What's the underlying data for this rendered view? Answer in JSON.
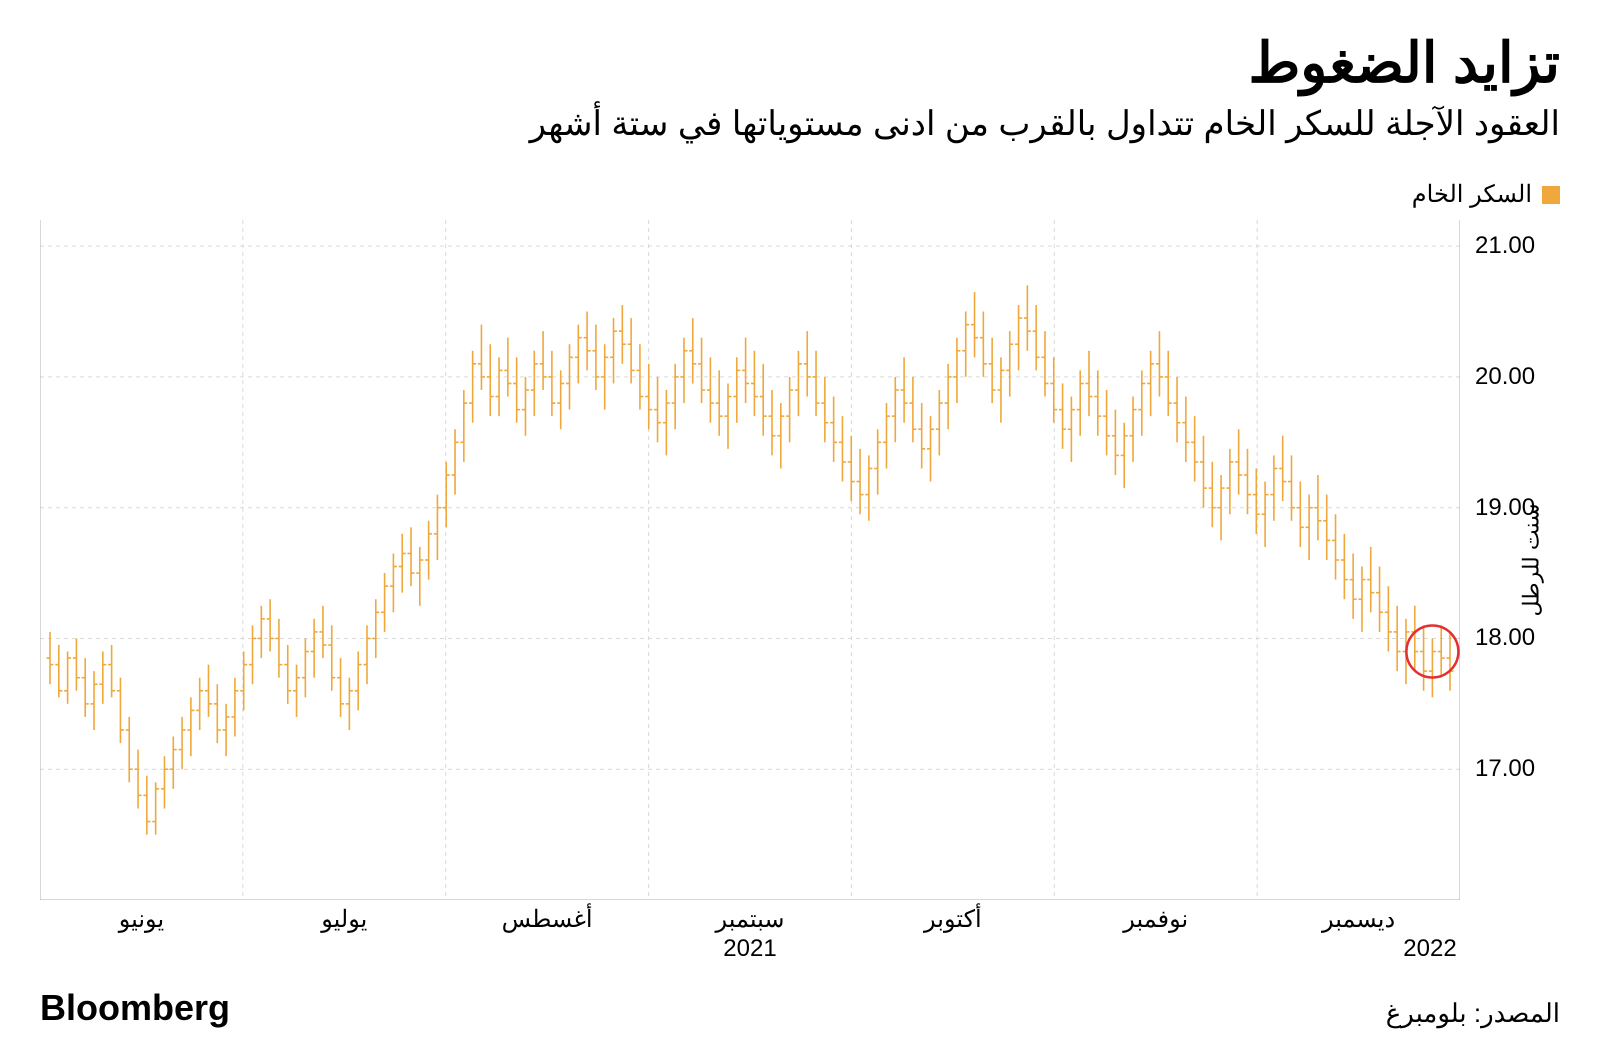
{
  "header": {
    "title": "تزايد الضغوط",
    "subtitle": "العقود الآجلة للسكر الخام تتداول بالقرب من ادنى مستوياتها في ستة أشهر"
  },
  "legend": {
    "swatch_color": "#f0a83c",
    "label": "السكر الخام"
  },
  "chart": {
    "type": "ohlc",
    "series_color": "#f0a83c",
    "background_color": "#ffffff",
    "grid_color": "#d9d9d9",
    "border_color": "#b0b0b0",
    "font_size_axis": 24,
    "y_axis": {
      "label": "سنت للرطل",
      "min": 16.0,
      "max": 21.2,
      "ticks": [
        17.0,
        18.0,
        19.0,
        20.0,
        21.0
      ],
      "tick_labels": [
        "17.00",
        "18.00",
        "19.00",
        "20.00",
        "21.00"
      ]
    },
    "x_axis": {
      "labels": [
        "يونيو",
        "يوليو",
        "أغسطس",
        "سبتمبر",
        "أكتوبر",
        "نوفمبر",
        "ديسمبر"
      ],
      "year_label_main": "2021",
      "year_label_end": "2022",
      "n_points": 160
    },
    "highlight_circle": {
      "color": "#e03030",
      "stroke_width": 2.5,
      "radius": 26,
      "at_index": 157,
      "at_value": 17.9
    },
    "data": [
      {
        "o": 17.85,
        "h": 18.05,
        "l": 17.65,
        "c": 17.8
      },
      {
        "o": 17.8,
        "h": 17.95,
        "l": 17.55,
        "c": 17.6
      },
      {
        "o": 17.6,
        "h": 17.9,
        "l": 17.5,
        "c": 17.85
      },
      {
        "o": 17.85,
        "h": 18.0,
        "l": 17.6,
        "c": 17.7
      },
      {
        "o": 17.7,
        "h": 17.85,
        "l": 17.4,
        "c": 17.5
      },
      {
        "o": 17.5,
        "h": 17.75,
        "l": 17.3,
        "c": 17.65
      },
      {
        "o": 17.65,
        "h": 17.9,
        "l": 17.5,
        "c": 17.8
      },
      {
        "o": 17.8,
        "h": 17.95,
        "l": 17.55,
        "c": 17.6
      },
      {
        "o": 17.6,
        "h": 17.7,
        "l": 17.2,
        "c": 17.3
      },
      {
        "o": 17.3,
        "h": 17.4,
        "l": 16.9,
        "c": 17.0
      },
      {
        "o": 17.0,
        "h": 17.15,
        "l": 16.7,
        "c": 16.8
      },
      {
        "o": 16.8,
        "h": 16.95,
        "l": 16.5,
        "c": 16.6
      },
      {
        "o": 16.6,
        "h": 16.9,
        "l": 16.5,
        "c": 16.85
      },
      {
        "o": 16.85,
        "h": 17.1,
        "l": 16.7,
        "c": 17.0
      },
      {
        "o": 17.0,
        "h": 17.25,
        "l": 16.85,
        "c": 17.15
      },
      {
        "o": 17.15,
        "h": 17.4,
        "l": 17.0,
        "c": 17.3
      },
      {
        "o": 17.3,
        "h": 17.55,
        "l": 17.1,
        "c": 17.45
      },
      {
        "o": 17.45,
        "h": 17.7,
        "l": 17.3,
        "c": 17.6
      },
      {
        "o": 17.6,
        "h": 17.8,
        "l": 17.4,
        "c": 17.5
      },
      {
        "o": 17.5,
        "h": 17.65,
        "l": 17.2,
        "c": 17.3
      },
      {
        "o": 17.3,
        "h": 17.5,
        "l": 17.1,
        "c": 17.4
      },
      {
        "o": 17.4,
        "h": 17.7,
        "l": 17.25,
        "c": 17.6
      },
      {
        "o": 17.6,
        "h": 17.9,
        "l": 17.45,
        "c": 17.8
      },
      {
        "o": 17.8,
        "h": 18.1,
        "l": 17.65,
        "c": 18.0
      },
      {
        "o": 18.0,
        "h": 18.25,
        "l": 17.85,
        "c": 18.15
      },
      {
        "o": 18.15,
        "h": 18.3,
        "l": 17.9,
        "c": 18.0
      },
      {
        "o": 18.0,
        "h": 18.15,
        "l": 17.7,
        "c": 17.8
      },
      {
        "o": 17.8,
        "h": 17.95,
        "l": 17.5,
        "c": 17.6
      },
      {
        "o": 17.6,
        "h": 17.8,
        "l": 17.4,
        "c": 17.7
      },
      {
        "o": 17.7,
        "h": 18.0,
        "l": 17.55,
        "c": 17.9
      },
      {
        "o": 17.9,
        "h": 18.15,
        "l": 17.7,
        "c": 18.05
      },
      {
        "o": 18.05,
        "h": 18.25,
        "l": 17.85,
        "c": 17.95
      },
      {
        "o": 17.95,
        "h": 18.1,
        "l": 17.6,
        "c": 17.7
      },
      {
        "o": 17.7,
        "h": 17.85,
        "l": 17.4,
        "c": 17.5
      },
      {
        "o": 17.5,
        "h": 17.7,
        "l": 17.3,
        "c": 17.6
      },
      {
        "o": 17.6,
        "h": 17.9,
        "l": 17.45,
        "c": 17.8
      },
      {
        "o": 17.8,
        "h": 18.1,
        "l": 17.65,
        "c": 18.0
      },
      {
        "o": 18.0,
        "h": 18.3,
        "l": 17.85,
        "c": 18.2
      },
      {
        "o": 18.2,
        "h": 18.5,
        "l": 18.05,
        "c": 18.4
      },
      {
        "o": 18.4,
        "h": 18.65,
        "l": 18.2,
        "c": 18.55
      },
      {
        "o": 18.55,
        "h": 18.8,
        "l": 18.35,
        "c": 18.65
      },
      {
        "o": 18.65,
        "h": 18.85,
        "l": 18.4,
        "c": 18.5
      },
      {
        "o": 18.5,
        "h": 18.7,
        "l": 18.25,
        "c": 18.6
      },
      {
        "o": 18.6,
        "h": 18.9,
        "l": 18.45,
        "c": 18.8
      },
      {
        "o": 18.8,
        "h": 19.1,
        "l": 18.6,
        "c": 19.0
      },
      {
        "o": 19.0,
        "h": 19.35,
        "l": 18.85,
        "c": 19.25
      },
      {
        "o": 19.25,
        "h": 19.6,
        "l": 19.1,
        "c": 19.5
      },
      {
        "o": 19.5,
        "h": 19.9,
        "l": 19.35,
        "c": 19.8
      },
      {
        "o": 19.8,
        "h": 20.2,
        "l": 19.65,
        "c": 20.1
      },
      {
        "o": 20.1,
        "h": 20.4,
        "l": 19.9,
        "c": 20.0
      },
      {
        "o": 20.0,
        "h": 20.25,
        "l": 19.7,
        "c": 19.85
      },
      {
        "o": 19.85,
        "h": 20.15,
        "l": 19.7,
        "c": 20.05
      },
      {
        "o": 20.05,
        "h": 20.3,
        "l": 19.85,
        "c": 19.95
      },
      {
        "o": 19.95,
        "h": 20.15,
        "l": 19.65,
        "c": 19.75
      },
      {
        "o": 19.75,
        "h": 20.0,
        "l": 19.55,
        "c": 19.9
      },
      {
        "o": 19.9,
        "h": 20.2,
        "l": 19.7,
        "c": 20.1
      },
      {
        "o": 20.1,
        "h": 20.35,
        "l": 19.9,
        "c": 20.0
      },
      {
        "o": 20.0,
        "h": 20.2,
        "l": 19.7,
        "c": 19.8
      },
      {
        "o": 19.8,
        "h": 20.05,
        "l": 19.6,
        "c": 19.95
      },
      {
        "o": 19.95,
        "h": 20.25,
        "l": 19.75,
        "c": 20.15
      },
      {
        "o": 20.15,
        "h": 20.4,
        "l": 19.95,
        "c": 20.3
      },
      {
        "o": 20.3,
        "h": 20.5,
        "l": 20.05,
        "c": 20.2
      },
      {
        "o": 20.2,
        "h": 20.4,
        "l": 19.9,
        "c": 20.0
      },
      {
        "o": 20.0,
        "h": 20.25,
        "l": 19.75,
        "c": 20.15
      },
      {
        "o": 20.15,
        "h": 20.45,
        "l": 19.95,
        "c": 20.35
      },
      {
        "o": 20.35,
        "h": 20.55,
        "l": 20.1,
        "c": 20.25
      },
      {
        "o": 20.25,
        "h": 20.45,
        "l": 19.95,
        "c": 20.05
      },
      {
        "o": 20.05,
        "h": 20.25,
        "l": 19.75,
        "c": 19.85
      },
      {
        "o": 19.85,
        "h": 20.1,
        "l": 19.6,
        "c": 19.75
      },
      {
        "o": 19.75,
        "h": 20.0,
        "l": 19.5,
        "c": 19.65
      },
      {
        "o": 19.65,
        "h": 19.9,
        "l": 19.4,
        "c": 19.8
      },
      {
        "o": 19.8,
        "h": 20.1,
        "l": 19.6,
        "c": 20.0
      },
      {
        "o": 20.0,
        "h": 20.3,
        "l": 19.8,
        "c": 20.2
      },
      {
        "o": 20.2,
        "h": 20.45,
        "l": 19.95,
        "c": 20.1
      },
      {
        "o": 20.1,
        "h": 20.3,
        "l": 19.8,
        "c": 19.9
      },
      {
        "o": 19.9,
        "h": 20.15,
        "l": 19.65,
        "c": 19.8
      },
      {
        "o": 19.8,
        "h": 20.05,
        "l": 19.55,
        "c": 19.7
      },
      {
        "o": 19.7,
        "h": 19.95,
        "l": 19.45,
        "c": 19.85
      },
      {
        "o": 19.85,
        "h": 20.15,
        "l": 19.65,
        "c": 20.05
      },
      {
        "o": 20.05,
        "h": 20.3,
        "l": 19.8,
        "c": 19.95
      },
      {
        "o": 19.95,
        "h": 20.2,
        "l": 19.7,
        "c": 19.85
      },
      {
        "o": 19.85,
        "h": 20.1,
        "l": 19.55,
        "c": 19.7
      },
      {
        "o": 19.7,
        "h": 19.9,
        "l": 19.4,
        "c": 19.55
      },
      {
        "o": 19.55,
        "h": 19.8,
        "l": 19.3,
        "c": 19.7
      },
      {
        "o": 19.7,
        "h": 20.0,
        "l": 19.5,
        "c": 19.9
      },
      {
        "o": 19.9,
        "h": 20.2,
        "l": 19.7,
        "c": 20.1
      },
      {
        "o": 20.1,
        "h": 20.35,
        "l": 19.85,
        "c": 20.0
      },
      {
        "o": 20.0,
        "h": 20.2,
        "l": 19.7,
        "c": 19.8
      },
      {
        "o": 19.8,
        "h": 20.0,
        "l": 19.5,
        "c": 19.65
      },
      {
        "o": 19.65,
        "h": 19.85,
        "l": 19.35,
        "c": 19.5
      },
      {
        "o": 19.5,
        "h": 19.7,
        "l": 19.2,
        "c": 19.35
      },
      {
        "o": 19.35,
        "h": 19.55,
        "l": 19.05,
        "c": 19.2
      },
      {
        "o": 19.2,
        "h": 19.45,
        "l": 18.95,
        "c": 19.1
      },
      {
        "o": 19.1,
        "h": 19.4,
        "l": 18.9,
        "c": 19.3
      },
      {
        "o": 19.3,
        "h": 19.6,
        "l": 19.1,
        "c": 19.5
      },
      {
        "o": 19.5,
        "h": 19.8,
        "l": 19.3,
        "c": 19.7
      },
      {
        "o": 19.7,
        "h": 20.0,
        "l": 19.5,
        "c": 19.9
      },
      {
        "o": 19.9,
        "h": 20.15,
        "l": 19.65,
        "c": 19.8
      },
      {
        "o": 19.8,
        "h": 20.0,
        "l": 19.5,
        "c": 19.6
      },
      {
        "o": 19.6,
        "h": 19.8,
        "l": 19.3,
        "c": 19.45
      },
      {
        "o": 19.45,
        "h": 19.7,
        "l": 19.2,
        "c": 19.6
      },
      {
        "o": 19.6,
        "h": 19.9,
        "l": 19.4,
        "c": 19.8
      },
      {
        "o": 19.8,
        "h": 20.1,
        "l": 19.6,
        "c": 20.0
      },
      {
        "o": 20.0,
        "h": 20.3,
        "l": 19.8,
        "c": 20.2
      },
      {
        "o": 20.2,
        "h": 20.5,
        "l": 20.0,
        "c": 20.4
      },
      {
        "o": 20.4,
        "h": 20.65,
        "l": 20.15,
        "c": 20.3
      },
      {
        "o": 20.3,
        "h": 20.5,
        "l": 20.0,
        "c": 20.1
      },
      {
        "o": 20.1,
        "h": 20.3,
        "l": 19.8,
        "c": 19.9
      },
      {
        "o": 19.9,
        "h": 20.15,
        "l": 19.65,
        "c": 20.05
      },
      {
        "o": 20.05,
        "h": 20.35,
        "l": 19.85,
        "c": 20.25
      },
      {
        "o": 20.25,
        "h": 20.55,
        "l": 20.05,
        "c": 20.45
      },
      {
        "o": 20.45,
        "h": 20.7,
        "l": 20.2,
        "c": 20.35
      },
      {
        "o": 20.35,
        "h": 20.55,
        "l": 20.05,
        "c": 20.15
      },
      {
        "o": 20.15,
        "h": 20.35,
        "l": 19.85,
        "c": 19.95
      },
      {
        "o": 19.95,
        "h": 20.15,
        "l": 19.65,
        "c": 19.75
      },
      {
        "o": 19.75,
        "h": 19.95,
        "l": 19.45,
        "c": 19.6
      },
      {
        "o": 19.6,
        "h": 19.85,
        "l": 19.35,
        "c": 19.75
      },
      {
        "o": 19.75,
        "h": 20.05,
        "l": 19.55,
        "c": 19.95
      },
      {
        "o": 19.95,
        "h": 20.2,
        "l": 19.7,
        "c": 19.85
      },
      {
        "o": 19.85,
        "h": 20.05,
        "l": 19.55,
        "c": 19.7
      },
      {
        "o": 19.7,
        "h": 19.9,
        "l": 19.4,
        "c": 19.55
      },
      {
        "o": 19.55,
        "h": 19.75,
        "l": 19.25,
        "c": 19.4
      },
      {
        "o": 19.4,
        "h": 19.65,
        "l": 19.15,
        "c": 19.55
      },
      {
        "o": 19.55,
        "h": 19.85,
        "l": 19.35,
        "c": 19.75
      },
      {
        "o": 19.75,
        "h": 20.05,
        "l": 19.55,
        "c": 19.95
      },
      {
        "o": 19.95,
        "h": 20.2,
        "l": 19.7,
        "c": 20.1
      },
      {
        "o": 20.1,
        "h": 20.35,
        "l": 19.85,
        "c": 20.0
      },
      {
        "o": 20.0,
        "h": 20.2,
        "l": 19.7,
        "c": 19.8
      },
      {
        "o": 19.8,
        "h": 20.0,
        "l": 19.5,
        "c": 19.65
      },
      {
        "o": 19.65,
        "h": 19.85,
        "l": 19.35,
        "c": 19.5
      },
      {
        "o": 19.5,
        "h": 19.7,
        "l": 19.2,
        "c": 19.35
      },
      {
        "o": 19.35,
        "h": 19.55,
        "l": 19.0,
        "c": 19.15
      },
      {
        "o": 19.15,
        "h": 19.35,
        "l": 18.85,
        "c": 19.0
      },
      {
        "o": 19.0,
        "h": 19.25,
        "l": 18.75,
        "c": 19.15
      },
      {
        "o": 19.15,
        "h": 19.45,
        "l": 18.95,
        "c": 19.35
      },
      {
        "o": 19.35,
        "h": 19.6,
        "l": 19.1,
        "c": 19.25
      },
      {
        "o": 19.25,
        "h": 19.45,
        "l": 18.95,
        "c": 19.1
      },
      {
        "o": 19.1,
        "h": 19.3,
        "l": 18.8,
        "c": 18.95
      },
      {
        "o": 18.95,
        "h": 19.2,
        "l": 18.7,
        "c": 19.1
      },
      {
        "o": 19.1,
        "h": 19.4,
        "l": 18.9,
        "c": 19.3
      },
      {
        "o": 19.3,
        "h": 19.55,
        "l": 19.05,
        "c": 19.2
      },
      {
        "o": 19.2,
        "h": 19.4,
        "l": 18.9,
        "c": 19.0
      },
      {
        "o": 19.0,
        "h": 19.2,
        "l": 18.7,
        "c": 18.85
      },
      {
        "o": 18.85,
        "h": 19.1,
        "l": 18.6,
        "c": 19.0
      },
      {
        "o": 19.0,
        "h": 19.25,
        "l": 18.75,
        "c": 18.9
      },
      {
        "o": 18.9,
        "h": 19.1,
        "l": 18.6,
        "c": 18.75
      },
      {
        "o": 18.75,
        "h": 18.95,
        "l": 18.45,
        "c": 18.6
      },
      {
        "o": 18.6,
        "h": 18.8,
        "l": 18.3,
        "c": 18.45
      },
      {
        "o": 18.45,
        "h": 18.65,
        "l": 18.15,
        "c": 18.3
      },
      {
        "o": 18.3,
        "h": 18.55,
        "l": 18.05,
        "c": 18.45
      },
      {
        "o": 18.45,
        "h": 18.7,
        "l": 18.2,
        "c": 18.35
      },
      {
        "o": 18.35,
        "h": 18.55,
        "l": 18.05,
        "c": 18.2
      },
      {
        "o": 18.2,
        "h": 18.4,
        "l": 17.9,
        "c": 18.05
      },
      {
        "o": 18.05,
        "h": 18.25,
        "l": 17.75,
        "c": 17.9
      },
      {
        "o": 17.9,
        "h": 18.15,
        "l": 17.65,
        "c": 18.05
      },
      {
        "o": 18.05,
        "h": 18.25,
        "l": 17.75,
        "c": 17.9
      },
      {
        "o": 17.9,
        "h": 18.1,
        "l": 17.6,
        "c": 17.75
      },
      {
        "o": 17.75,
        "h": 18.0,
        "l": 17.55,
        "c": 17.9
      },
      {
        "o": 17.9,
        "h": 18.1,
        "l": 17.7,
        "c": 17.85
      },
      {
        "o": 17.85,
        "h": 18.05,
        "l": 17.6,
        "c": 17.75
      }
    ]
  },
  "footer": {
    "brand": "Bloomberg",
    "source": "المصدر: بلومبرغ"
  }
}
